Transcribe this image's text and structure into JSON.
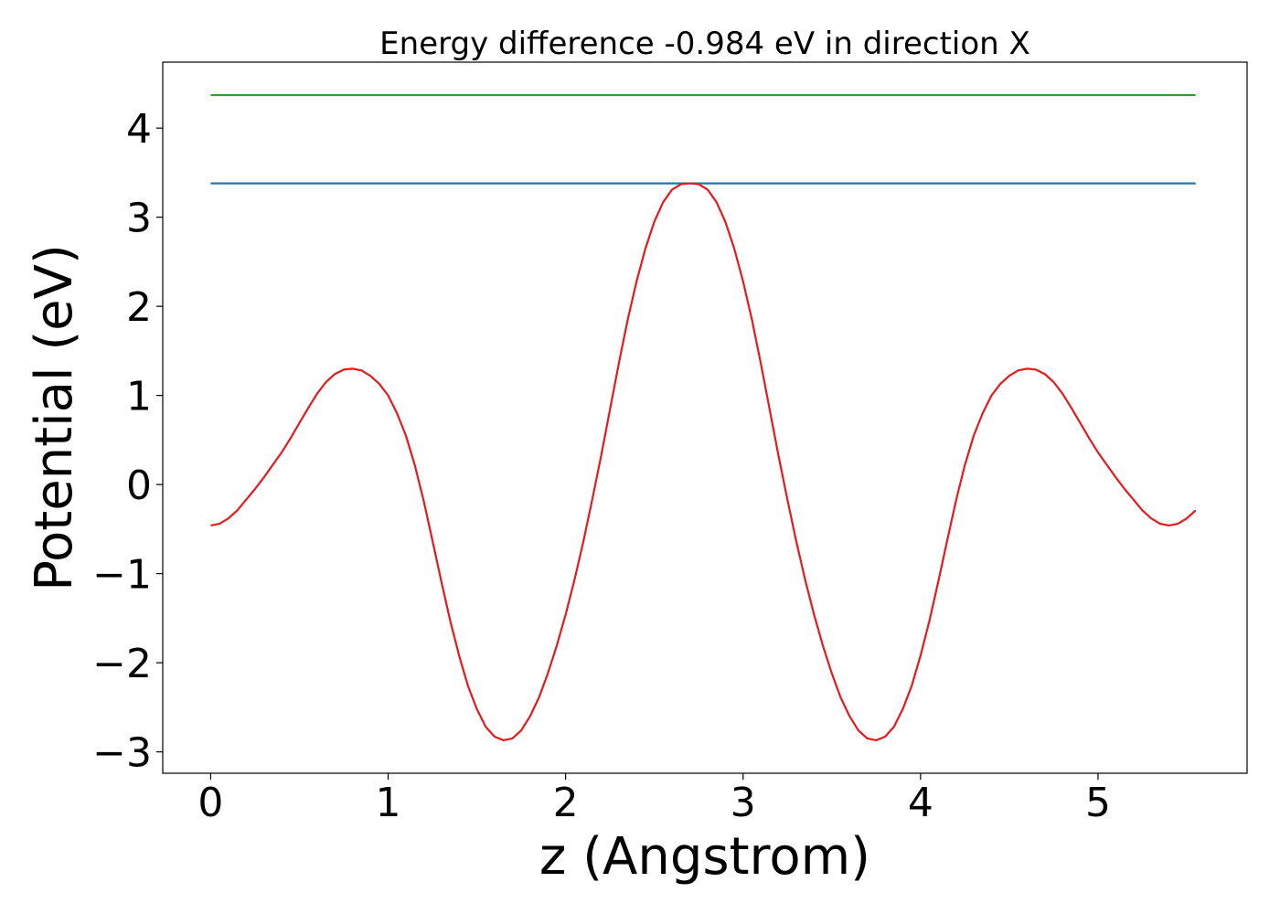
{
  "chart_data": {
    "type": "line",
    "title": "Energy difference -0.984 eV in direction X",
    "xlabel": "z (Angstrom)",
    "ylabel": "Potential (eV)",
    "xlim": [
      -0.27,
      5.84
    ],
    "ylim": [
      -3.24,
      4.74
    ],
    "x_ticks": [
      0,
      1,
      2,
      3,
      4,
      5
    ],
    "x_tick_labels": [
      "0",
      "1",
      "2",
      "3",
      "4",
      "5"
    ],
    "y_ticks": [
      -3,
      -2,
      -1,
      0,
      1,
      2,
      3,
      4
    ],
    "y_tick_labels": [
      "−3",
      "−2",
      "−1",
      "0",
      "1",
      "2",
      "3",
      "4"
    ],
    "grid": false,
    "series": [
      {
        "color": "#1f77b4",
        "x": [
          0,
          5.55
        ],
        "y": [
          3.38,
          3.38
        ]
      },
      {
        "color": "#2ca02c",
        "x": [
          0,
          5.55
        ],
        "y": [
          4.37,
          4.37
        ]
      },
      {
        "color": "#e41a1c",
        "x": [
          0,
          0.05,
          0.1,
          0.15,
          0.2,
          0.25,
          0.3,
          0.35,
          0.4,
          0.45,
          0.5,
          0.55,
          0.6,
          0.65,
          0.7,
          0.75,
          0.8,
          0.85,
          0.9,
          0.95,
          1.0,
          1.05,
          1.1,
          1.15,
          1.2,
          1.25,
          1.3,
          1.35,
          1.4,
          1.45,
          1.5,
          1.55,
          1.6,
          1.65,
          1.7,
          1.75,
          1.8,
          1.85,
          1.9,
          1.95,
          2.0,
          2.05,
          2.1,
          2.15,
          2.2,
          2.25,
          2.3,
          2.35,
          2.4,
          2.45,
          2.5,
          2.55,
          2.6,
          2.65,
          2.7,
          2.75,
          2.8,
          2.85,
          2.9,
          2.95,
          3.0,
          3.05,
          3.1,
          3.15,
          3.2,
          3.25,
          3.3,
          3.35,
          3.4,
          3.45,
          3.5,
          3.55,
          3.6,
          3.65,
          3.7,
          3.75,
          3.8,
          3.85,
          3.9,
          3.95,
          4.0,
          4.05,
          4.1,
          4.15,
          4.2,
          4.25,
          4.3,
          4.35,
          4.4,
          4.45,
          4.5,
          4.55,
          4.6,
          4.65,
          4.7,
          4.75,
          4.8,
          4.85,
          4.9,
          4.95,
          5.0,
          5.05,
          5.1,
          5.15,
          5.2,
          5.25,
          5.3,
          5.35,
          5.4,
          5.45,
          5.5,
          5.55
        ],
        "y": [
          -0.46,
          -0.44,
          -0.38,
          -0.29,
          -0.17,
          -0.05,
          0.08,
          0.22,
          0.36,
          0.52,
          0.69,
          0.86,
          1.02,
          1.15,
          1.24,
          1.29,
          1.3,
          1.28,
          1.22,
          1.13,
          1.0,
          0.8,
          0.55,
          0.22,
          -0.18,
          -0.63,
          -1.09,
          -1.53,
          -1.92,
          -2.26,
          -2.52,
          -2.72,
          -2.83,
          -2.87,
          -2.85,
          -2.76,
          -2.6,
          -2.39,
          -2.12,
          -1.81,
          -1.46,
          -1.07,
          -0.64,
          -0.17,
          0.32,
          0.84,
          1.36,
          1.85,
          2.28,
          2.65,
          2.95,
          3.17,
          3.31,
          3.37,
          3.38,
          3.37,
          3.31,
          3.17,
          2.95,
          2.65,
          2.28,
          1.85,
          1.36,
          0.84,
          0.32,
          -0.17,
          -0.64,
          -1.07,
          -1.46,
          -1.81,
          -2.12,
          -2.39,
          -2.6,
          -2.76,
          -2.85,
          -2.87,
          -2.83,
          -2.72,
          -2.52,
          -2.26,
          -1.92,
          -1.53,
          -1.09,
          -0.63,
          -0.18,
          0.22,
          0.55,
          0.8,
          1.0,
          1.13,
          1.22,
          1.28,
          1.3,
          1.29,
          1.24,
          1.15,
          1.02,
          0.86,
          0.69,
          0.52,
          0.36,
          0.22,
          0.08,
          -0.05,
          -0.17,
          -0.29,
          -0.38,
          -0.44,
          -0.46,
          -0.44,
          -0.38,
          -0.29
        ]
      }
    ]
  }
}
